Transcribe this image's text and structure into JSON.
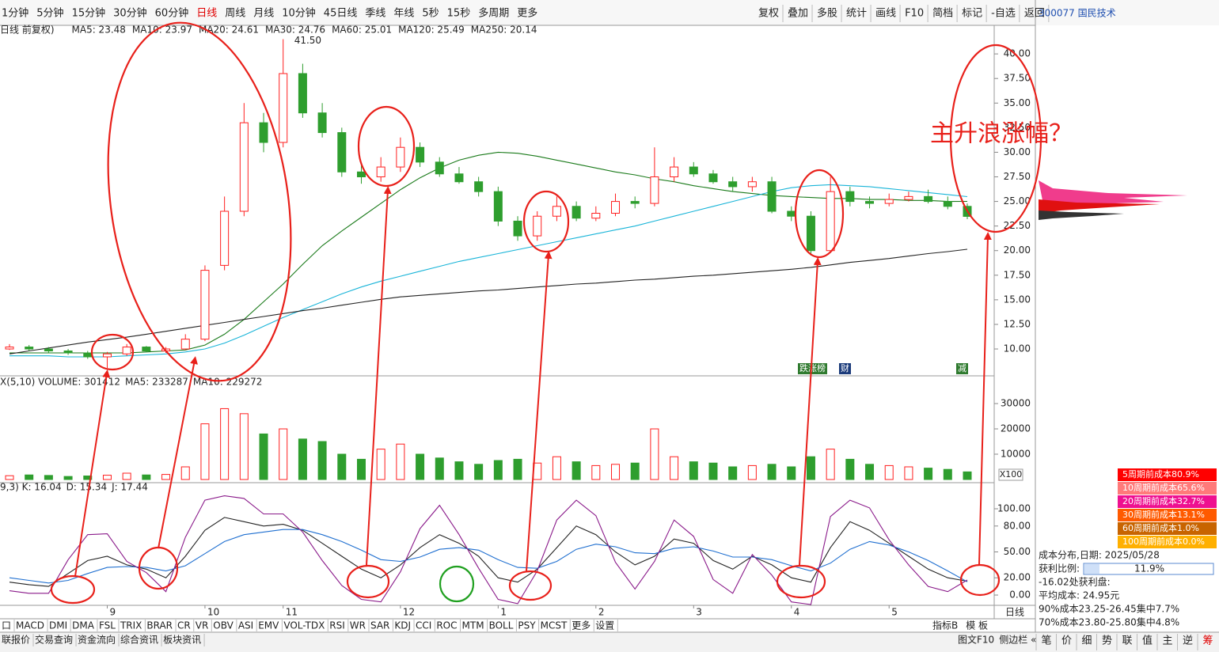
{
  "toolbar": [
    "1分钟",
    "5分钟",
    "15分钟",
    "30分钟",
    "60分钟",
    "日线",
    "周线",
    "月线",
    "10分钟",
    "45日线",
    "季线",
    "年线",
    "5秒",
    "15秒",
    "多周期",
    "更多"
  ],
  "toolbar_active": "日线",
  "toolbar_right": [
    "复权",
    "叠加",
    "多股",
    "统计",
    "画线",
    "F10",
    "简档",
    "标记",
    "-自选",
    "返回"
  ],
  "stock": "300077 国民技术",
  "annotation": "主升浪涨幅？",
  "event_tags": [
    "跌涨榜",
    "财",
    "减"
  ],
  "chart_data": {
    "type": "candlestick",
    "legend_prefix": "日线 前复权)",
    "ma_legend": [
      {
        "label": "MA5: 23.48",
        "color": "#333333"
      },
      {
        "label": "MA10: 23.97",
        "color": "#1f6fd0"
      },
      {
        "label": "MA20: 24.61",
        "color": "#8a1a8a"
      },
      {
        "label": "MA30: 24.76",
        "color": "#555555"
      },
      {
        "label": "MA60: 25.01",
        "color": "#1a7a1a"
      },
      {
        "label": "MA120: 25.49",
        "color": "#18b4d8"
      },
      {
        "label": "MA250: 20.14",
        "color": "#222222"
      }
    ],
    "categories": [
      null,
      null,
      null,
      null,
      null,
      "9",
      null,
      null,
      null,
      null,
      "10",
      null,
      null,
      null,
      "11",
      null,
      null,
      null,
      null,
      null,
      "12",
      null,
      null,
      null,
      null,
      "1",
      null,
      null,
      null,
      null,
      "2",
      null,
      null,
      null,
      null,
      "3",
      null,
      null,
      null,
      null,
      "4",
      null,
      null,
      null,
      null,
      "5",
      null,
      null,
      null,
      null
    ],
    "open": [
      10.0,
      10.2,
      10.0,
      9.8,
      9.6,
      9.2,
      9.5,
      10.2,
      9.8,
      10.0,
      11.0,
      18.5,
      24.0,
      33.0,
      31.0,
      38.0,
      34.0,
      32.0,
      28.0,
      27.5,
      28.5,
      30.5,
      29.0,
      27.8,
      27.0,
      26.0,
      23.0,
      21.5,
      23.5,
      24.5,
      23.3,
      23.8,
      25.0,
      24.8,
      27.5,
      28.5,
      27.8,
      27.0,
      26.5,
      27.0,
      24.0,
      23.5,
      20.0,
      26.0,
      25.0,
      24.8,
      25.2,
      25.5,
      25.0,
      24.5
    ],
    "high": [
      10.5,
      10.4,
      10.2,
      10.0,
      9.8,
      9.7,
      10.5,
      10.3,
      10.2,
      11.5,
      18.5,
      25.5,
      35.0,
      34.0,
      41.5,
      39.0,
      35.0,
      32.5,
      29.0,
      29.5,
      31.5,
      31.0,
      29.5,
      28.5,
      27.5,
      26.5,
      23.5,
      24.0,
      25.5,
      25.0,
      24.5,
      25.8,
      25.5,
      30.5,
      29.5,
      29.0,
      28.2,
      27.5,
      27.5,
      27.5,
      24.5,
      24.0,
      27.5,
      26.5,
      25.5,
      25.8,
      26.0,
      26.2,
      25.5,
      24.8
    ],
    "low": [
      9.9,
      9.8,
      9.6,
      9.4,
      9.0,
      8.07,
      9.3,
      9.7,
      9.6,
      9.9,
      10.8,
      18.0,
      23.5,
      30.0,
      30.5,
      33.5,
      31.5,
      27.5,
      26.8,
      27.0,
      28.0,
      28.5,
      27.5,
      26.8,
      25.5,
      22.5,
      21.0,
      21.0,
      23.0,
      23.0,
      23.0,
      23.5,
      24.3,
      24.5,
      27.0,
      27.5,
      26.8,
      26.0,
      26.0,
      23.8,
      23.0,
      19.5,
      19.8,
      24.5,
      24.3,
      24.5,
      25.0,
      24.8,
      24.2,
      23.2
    ],
    "close": [
      10.2,
      10.0,
      9.8,
      9.6,
      9.2,
      9.5,
      10.2,
      9.8,
      10.0,
      11.0,
      18.0,
      24.0,
      33.0,
      31.0,
      38.0,
      34.0,
      32.0,
      28.0,
      27.5,
      28.5,
      30.5,
      29.0,
      27.8,
      27.0,
      26.0,
      23.0,
      21.5,
      23.5,
      24.5,
      23.3,
      23.8,
      25.0,
      24.8,
      27.5,
      28.5,
      27.8,
      27.0,
      26.5,
      27.0,
      24.0,
      23.5,
      20.0,
      26.0,
      25.0,
      24.8,
      25.2,
      25.5,
      25.0,
      24.5,
      23.48
    ],
    "high_labels": [
      null,
      null,
      null,
      null,
      null,
      null,
      null,
      null,
      null,
      null,
      null,
      null,
      null,
      null,
      "41.50",
      null,
      null,
      null,
      null,
      null,
      null,
      null,
      null,
      null,
      null,
      null,
      null,
      null,
      null,
      null,
      null,
      null,
      null,
      null,
      null,
      null,
      null,
      null,
      null,
      null,
      null,
      null,
      null,
      null,
      null,
      null,
      null,
      null,
      null,
      null
    ],
    "series": [
      {
        "name": "MA60",
        "color": "#1a7a1a",
        "values": [
          9.6,
          9.6,
          9.6,
          9.6,
          9.6,
          9.6,
          9.6,
          9.7,
          9.8,
          9.9,
          10.4,
          11.5,
          13.0,
          14.8,
          16.6,
          18.6,
          20.5,
          22.0,
          23.4,
          24.8,
          26.2,
          27.4,
          28.4,
          29.2,
          29.7,
          30.0,
          29.9,
          29.6,
          29.2,
          28.8,
          28.4,
          28.0,
          27.7,
          27.3,
          27.0,
          26.6,
          26.3,
          26.0,
          25.8,
          25.6,
          25.5,
          25.4,
          25.3,
          25.3,
          25.2,
          25.2,
          25.1,
          25.1,
          25.0,
          25.01
        ]
      },
      {
        "name": "MA120",
        "color": "#18b4d8",
        "values": [
          9.3,
          9.3,
          9.3,
          9.2,
          9.2,
          9.2,
          9.3,
          9.4,
          9.5,
          9.7,
          10.0,
          10.6,
          11.4,
          12.3,
          13.2,
          14.0,
          14.8,
          15.6,
          16.3,
          16.9,
          17.4,
          17.9,
          18.4,
          18.9,
          19.3,
          19.7,
          20.1,
          20.5,
          20.9,
          21.3,
          21.7,
          22.1,
          22.5,
          23.0,
          23.5,
          24.0,
          24.5,
          25.0,
          25.5,
          26.0,
          26.4,
          26.6,
          26.7,
          26.6,
          26.5,
          26.3,
          26.1,
          25.9,
          25.7,
          25.49
        ]
      },
      {
        "name": "MA250",
        "color": "#222222",
        "values": [
          9.5,
          9.8,
          10.1,
          10.4,
          10.7,
          10.95,
          11.2,
          11.5,
          11.8,
          12.1,
          12.4,
          12.7,
          13.0,
          13.3,
          13.6,
          13.9,
          14.15,
          14.45,
          14.75,
          15.05,
          15.3,
          15.45,
          15.6,
          15.75,
          15.9,
          16.0,
          16.15,
          16.3,
          16.45,
          16.6,
          16.7,
          16.85,
          17.0,
          17.1,
          17.25,
          17.4,
          17.5,
          17.65,
          17.8,
          17.95,
          18.1,
          18.3,
          18.55,
          18.8,
          19.0,
          19.2,
          19.45,
          19.7,
          19.9,
          20.14
        ]
      }
    ],
    "up_color": "#ff2020",
    "down_color": "#2e9e2e",
    "ylim": [
      7.67,
      41.86
    ],
    "yticks": [
      {
        "value": 10,
        "label": "10.00"
      },
      {
        "value": 12.5,
        "label": "12.50"
      },
      {
        "value": 15,
        "label": "15.00"
      },
      {
        "value": 17.5,
        "label": "17.50"
      },
      {
        "value": 20,
        "label": "20.00"
      },
      {
        "value": 22.5,
        "label": "22.50"
      },
      {
        "value": 25,
        "label": "25.00"
      },
      {
        "value": 27.5,
        "label": "27.50"
      },
      {
        "value": 30,
        "label": "30.00"
      },
      {
        "value": 32.5,
        "label": "32.50"
      },
      {
        "value": 35,
        "label": "35.00"
      },
      {
        "value": 37.5,
        "label": "37.50"
      },
      {
        "value": 40,
        "label": "40.00"
      }
    ],
    "volume": {
      "legend": [
        {
          "label": "X(5,10) VOLUME: 301412",
          "color": "#222222"
        },
        {
          "label": "MA5: 233287",
          "color": "#333333"
        },
        {
          "label": "MA10: 229272",
          "color": "#1f6fd0"
        }
      ],
      "unit": "X100",
      "values": [
        1500,
        1800,
        1600,
        1200,
        1400,
        1700,
        2500,
        1800,
        2000,
        5000,
        22000,
        28000,
        26000,
        18000,
        20000,
        16000,
        15000,
        10000,
        8000,
        12000,
        14000,
        10000,
        8500,
        7000,
        6000,
        7500,
        8000,
        6500,
        9000,
        7000,
        5500,
        6000,
        6500,
        20000,
        9000,
        7000,
        6500,
        5000,
        5500,
        6000,
        5000,
        9000,
        12000,
        8000,
        6000,
        5500,
        5000,
        4500,
        4000,
        3014
      ],
      "ylim": [
        0,
        34700
      ],
      "yticks": [
        10000,
        20000,
        30000
      ]
    },
    "kdj": {
      "legend": [
        {
          "label": "9,3) K: 16.04",
          "color": "#222222"
        },
        {
          "label": "D: 15.34",
          "color": "#1f6fd0"
        },
        {
          "label": "J: 17.44",
          "color": "#8a1a8a"
        }
      ],
      "series": [
        {
          "name": "K",
          "color": "#222222",
          "values": [
            15,
            12,
            10,
            25,
            40,
            45,
            35,
            30,
            20,
            45,
            75,
            90,
            85,
            80,
            82,
            75,
            60,
            45,
            30,
            20,
            35,
            55,
            70,
            60,
            45,
            20,
            15,
            30,
            55,
            80,
            70,
            50,
            35,
            45,
            65,
            60,
            40,
            30,
            45,
            35,
            20,
            15,
            55,
            85,
            75,
            60,
            45,
            30,
            20,
            16.04
          ]
        },
        {
          "name": "D",
          "color": "#1f6fd0",
          "values": [
            20,
            17,
            14,
            17,
            25,
            32,
            33,
            32,
            28,
            34,
            48,
            62,
            70,
            73,
            76,
            76,
            70,
            62,
            52,
            41,
            39,
            44,
            53,
            55,
            52,
            41,
            32,
            31,
            39,
            53,
            59,
            56,
            49,
            48,
            54,
            56,
            51,
            44,
            44,
            41,
            34,
            28,
            37,
            53,
            62,
            58,
            50,
            40,
            28,
            15.34
          ]
        },
        {
          "name": "J",
          "color": "#8a1a8a",
          "values": [
            5,
            2,
            2,
            41,
            70,
            71,
            39,
            26,
            4,
            67,
            110,
            115,
            112,
            94,
            94,
            73,
            40,
            11,
            -5,
            -8,
            27,
            77,
            104,
            70,
            31,
            -5,
            -10,
            28,
            87,
            110,
            92,
            38,
            7,
            39,
            87,
            68,
            18,
            2,
            47,
            23,
            -8,
            -11,
            91,
            110,
            101,
            64,
            35,
            10,
            4,
            17.44
          ]
        }
      ],
      "ylim": [
        -11.9,
        116.5
      ],
      "yticks": [
        {
          "value": 0,
          "label": "0.00"
        },
        {
          "value": 20,
          "label": "20.00"
        },
        {
          "value": 50,
          "label": "50.00"
        },
        {
          "value": 80,
          "label": "80.00"
        },
        {
          "value": 100,
          "label": "100.00"
        }
      ]
    }
  },
  "period_label": "日线",
  "indicator_tabs": [
    "口",
    "MACD",
    "DMI",
    "DMA",
    "FSL",
    "TRIX",
    "BRAR",
    "CR",
    "VR",
    "OBV",
    "ASI",
    "EMV",
    "VOL-TDX",
    "RSI",
    "WR",
    "SAR",
    "KDJ",
    "CCI",
    "ROC",
    "MTM",
    "BOLL",
    "PSY",
    "MCST",
    "更多",
    "设置"
  ],
  "indicator_active": "KDJ",
  "indicator_right": [
    "指标B",
    "模 板"
  ],
  "bottom_nav": [
    "联报价",
    "交易查询",
    "资金流向",
    "综合资讯",
    "板块资讯"
  ],
  "bottom_right": [
    "图文F10",
    "侧边栏 «"
  ],
  "side_buttons": [
    "笔",
    "价",
    "细",
    "势",
    "联",
    "值",
    "主",
    "逆",
    "筹"
  ],
  "cost_periods": [
    {
      "label": "5周期前成本80.9%",
      "color": "#ff0000"
    },
    {
      "label": "10周期前成本65.6%",
      "color": "#ff7a7a"
    },
    {
      "label": "20周期前成本32.7%",
      "color": "#ee1090"
    },
    {
      "label": "30周期前成本13.1%",
      "color": "#ff5a00"
    },
    {
      "label": "60周期前成本1.0%",
      "color": "#c86400"
    },
    {
      "label": "100周期前成本0.0%",
      "color": "#ffb000"
    }
  ],
  "cost_info": {
    "date": "成本分布,日期:  2025/05/28",
    "profit_label": "获利比例:",
    "profit_value": "11.9%",
    "profit_at": "-16.02处获利盘:",
    "avg": "平均成本: 24.95元",
    "c90": "90%成本23.25-26.45集中7.7%",
    "c70": "70%成本23.80-25.80集中4.8%"
  }
}
